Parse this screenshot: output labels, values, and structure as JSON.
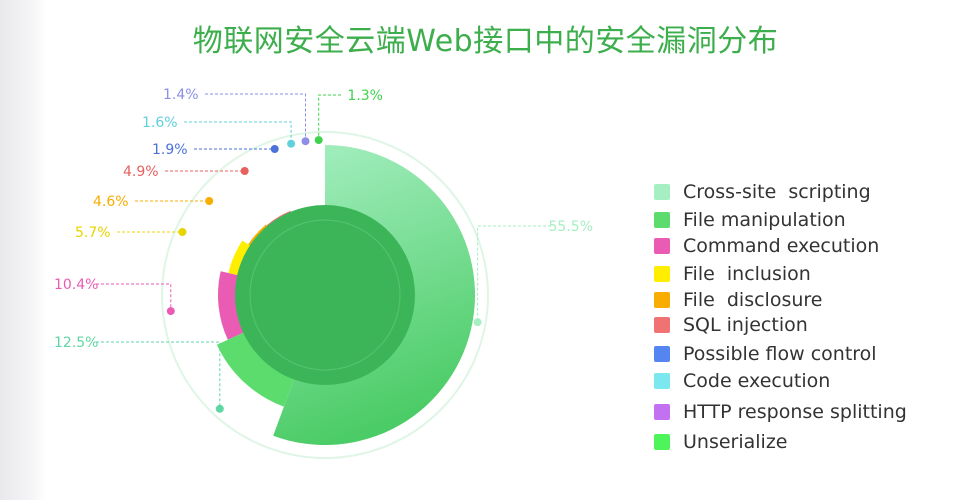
{
  "chart_data": {
    "type": "pie",
    "title": "物联网安全云端Web接口中的安全漏洞分布",
    "series": [
      {
        "name": "Cross-site  scripting",
        "value": 55.5,
        "label": "55.5%",
        "color": "#a6efc2",
        "color2": "#4ccc67"
      },
      {
        "name": "File manipulation",
        "value": 12.5,
        "label": "12.5%",
        "color": "#5ddc6e",
        "label_color": "#5fd7a4"
      },
      {
        "name": "Command execution",
        "value": 10.4,
        "label": "10.4%",
        "color": "#ea5bb4"
      },
      {
        "name": "File  inclusion",
        "value": 5.7,
        "label": "5.7%",
        "color": "#ffee00",
        "label_color": "#e8d400"
      },
      {
        "name": "File  disclosure",
        "value": 4.6,
        "label": "4.6%",
        "color": "#f8ad00"
      },
      {
        "name": "SQL injection",
        "value": 4.9,
        "label": "4.9%",
        "color": "#f07272",
        "label_color": "#e86060"
      },
      {
        "name": "Possible flow control",
        "value": 1.9,
        "label": "1.9%",
        "color": "#5585f0",
        "label_color": "#4a72d8"
      },
      {
        "name": "Code execution",
        "value": 1.6,
        "label": "1.6%",
        "color": "#7be8f0",
        "label_color": "#5fd0dc"
      },
      {
        "name": "HTTP response splitting",
        "value": 1.4,
        "label": "1.4%",
        "color": "#c271f0",
        "label_color": "#8c8ee8"
      },
      {
        "name": "Unserialize",
        "value": 1.3,
        "label": "1.3%",
        "color": "#4ef55a",
        "label_color": "#3fd34d"
      }
    ],
    "legend_position": "right",
    "inner_circle_color": "#3bb558",
    "outer_ring_color": "#dff5e6"
  }
}
